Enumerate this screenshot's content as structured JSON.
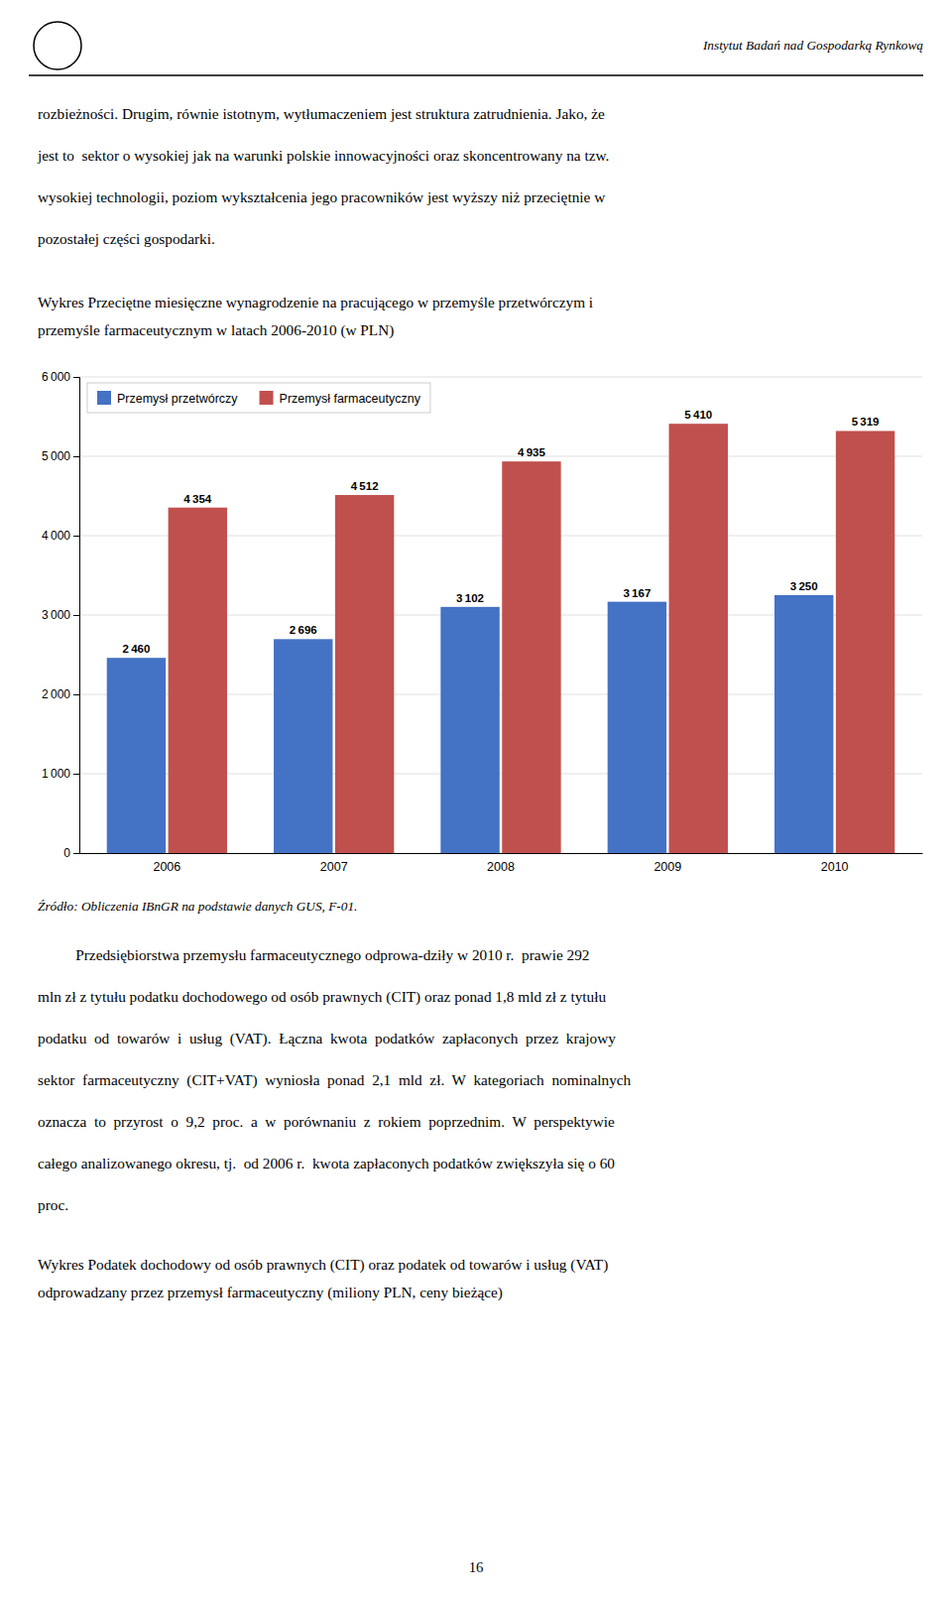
{
  "header": "Instytut Badań nad Gospodarką Rynkową",
  "body_before": [
    "rozbieżności. Drugim, równie istotnym, wytłumaczeniem jest struktura zatrudnienia. Jako, że",
    "jest to  sektor o wysokiej jak na warunki polskie innowacyjności oraz skoncentrowany na tzw.",
    "wysokiej technologii, poziom wykształcenia jego pracowników jest wyższy niż przeciętnie w",
    "pozostałej części gospodarki."
  ],
  "chart_data": {
    "type": "bar",
    "title": "Wykres Przeciętne miesięczne wynagrodzenie na pracującego w przemyśle przetwórczym i",
    "subtitle": "przemyśle farmaceutycznym w latach 2006-2010 (w PLN)",
    "categories": [
      "2006",
      "2007",
      "2008",
      "2009",
      "2010"
    ],
    "series": [
      {
        "name": "Przemysł przetwórczy",
        "color": "#4472C4",
        "values": [
          2460,
          2696,
          3102,
          3167,
          3250
        ],
        "value_labels": [
          "2 460",
          "2 696",
          "3 102",
          "3 167",
          "3 250"
        ]
      },
      {
        "name": "Przemysł farmaceutyczny",
        "color": "#C0504D",
        "values": [
          4354,
          4512,
          4935,
          5410,
          5319
        ],
        "value_labels": [
          "4 354",
          "4 512",
          "4 935",
          "5 410",
          "5 319"
        ]
      }
    ],
    "ylim": [
      0,
      6000
    ],
    "yticks": [
      0,
      {
        "value": 1000,
        "label": "1 000"
      },
      {
        "value": 2000,
        "label": "2 000"
      },
      {
        "value": 3000,
        "label": "3 000"
      },
      {
        "value": 4000,
        "label": "4 000"
      },
      {
        "value": 5000,
        "label": "5 000"
      },
      {
        "value": 6000,
        "label": "6 000"
      }
    ],
    "grid": true,
    "legend": "upper left",
    "data_labels": true
  },
  "source": "Źródło: Obliczenia IBnGR na podstawie danych GUS, F-01.",
  "body_after": [
    "          Przedsiębiorstwa przemysłu farmaceutycznego odprowa‑dziły w 2010 r.  prawie 292",
    "mln zł z tytułu podatku dochodowego od osób prawnych (CIT) oraz ponad 1,8 mld zł z tytułu",
    "podatku  od  towarów  i  usług  (VAT).  Łączna  kwota  podatków  zapłaconych  przez  krajowy",
    "sektor  farmaceutyczny  (CIT+VAT)  wyniosła  ponad  2,1  mld  zł.  W  kategoriach  nominalnych",
    "oznacza  to  przyrost  o  9,2  proc.  a  w  porównaniu  z  rokiem  poprzednim.  W  perspektywie",
    "całego analizowanego okresu, tj.  od 2006 r.  kwota zapłaconych podatków zwiększyła się o 60",
    "proc."
  ],
  "next_figure_caption": [
    "Wykres Podatek dochodowy od osób prawnych (CIT) oraz podatek od towarów i usług (VAT)",
    "odprowadzany przez przemysł farmaceutyczny (miliony PLN, ceny bieżące)"
  ],
  "page_number": "16"
}
